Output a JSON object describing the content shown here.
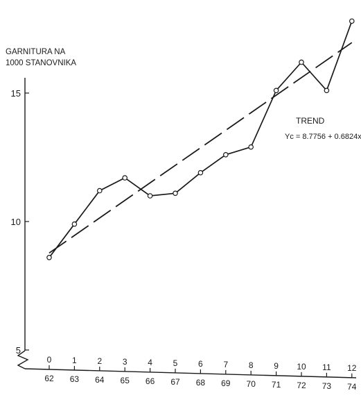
{
  "chart_data": {
    "type": "line",
    "ylabel": [
      "GARNITURA NA",
      "1000 STANOVNIKA"
    ],
    "x_index": [
      0,
      1,
      2,
      3,
      4,
      5,
      6,
      7,
      8,
      9,
      10,
      11,
      12
    ],
    "x_year": [
      "62",
      "63",
      "64",
      "65",
      "66",
      "67",
      "68",
      "69",
      "70",
      "71",
      "72",
      "73",
      "74"
    ],
    "y_ticks": [
      5,
      10,
      15
    ],
    "ylim": [
      5,
      17.9
    ],
    "series": [
      {
        "values": [
          8.6,
          9.9,
          11.2,
          11.7,
          11.0,
          11.1,
          11.9,
          12.6,
          12.9,
          15.1,
          16.2,
          15.1,
          17.8
        ]
      }
    ],
    "trend": {
      "label": "TREND",
      "equation": "Yc = 8.7756 + 0.6824x",
      "intercept": 8.7756,
      "slope": 0.6824
    },
    "grid": false,
    "axis_break": true
  }
}
